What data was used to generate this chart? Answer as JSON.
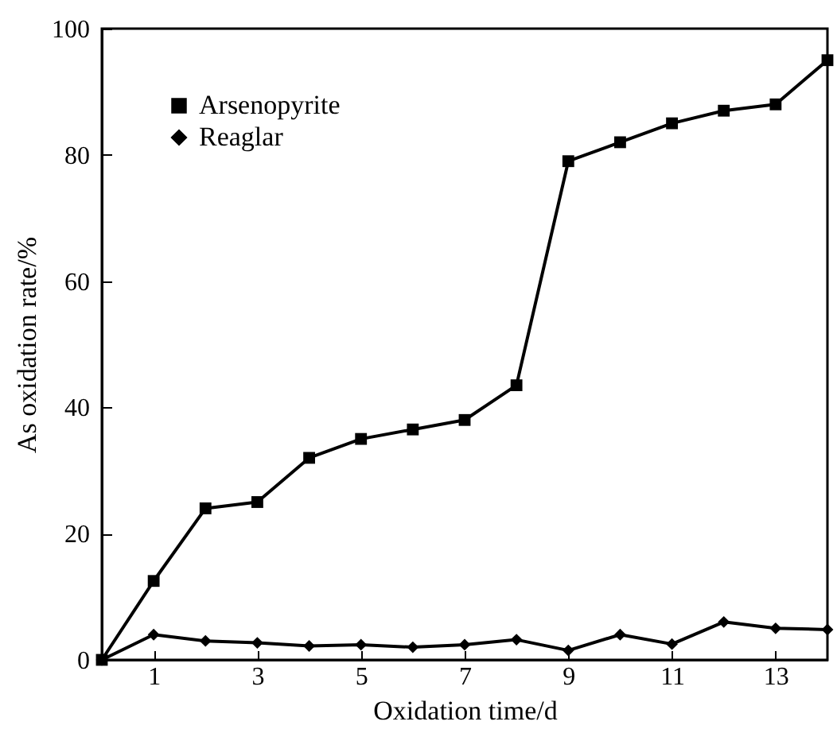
{
  "chart_data": {
    "type": "line",
    "xlabel": "Oxidation time/d",
    "ylabel": "As oxidation rate/%",
    "x": [
      0,
      1,
      2,
      3,
      4,
      5,
      6,
      7,
      8,
      9,
      10,
      11,
      12,
      13,
      14
    ],
    "series": [
      {
        "name": "Arsenopyrite",
        "color": "#000000",
        "marker": "square",
        "values": [
          0,
          12.5,
          24,
          25,
          32,
          35,
          36.5,
          38,
          43.5,
          79,
          82,
          85,
          87,
          88,
          95
        ]
      },
      {
        "name": "Reaglar",
        "color": "#000000",
        "marker": "diamond",
        "values": [
          0,
          4,
          3,
          2.7,
          2.2,
          2.4,
          2,
          2.4,
          3.2,
          1.5,
          4,
          2.5,
          6,
          5,
          4.8
        ]
      }
    ],
    "xlim": [
      0,
      14
    ],
    "xticks": [
      1,
      3,
      5,
      7,
      9,
      11,
      13
    ],
    "ylim": [
      0,
      100
    ],
    "yticks": [
      0,
      20,
      40,
      60,
      80,
      100
    ],
    "grid": false,
    "legend": "top left",
    "line_style": "solid"
  }
}
